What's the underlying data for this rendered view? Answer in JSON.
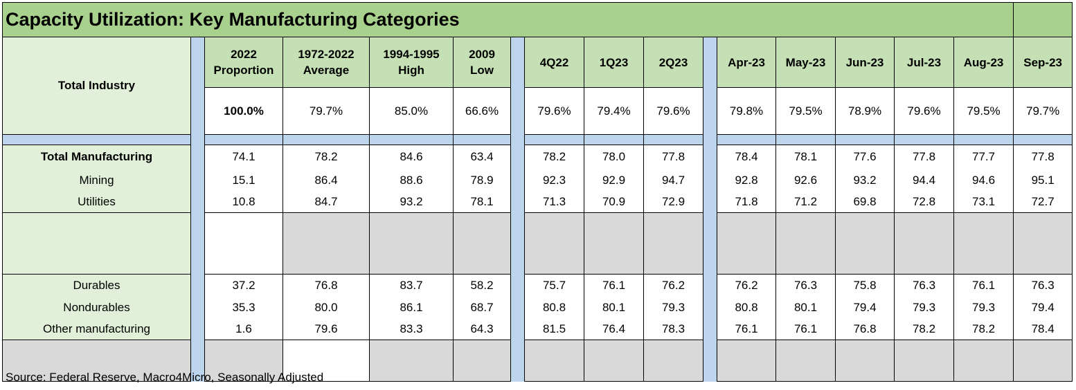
{
  "title": "Capacity Utilization: Key Manufacturing Categories",
  "header": {
    "row_label": "Total Industry",
    "columns": [
      {
        "line1": "2022",
        "line2": "Proportion"
      },
      {
        "line1": "1972-2022",
        "line2": "Average"
      },
      {
        "line1": "1994-1995",
        "line2": "High"
      },
      {
        "line1": "2009",
        "line2": "Low"
      },
      {
        "line1": "4Q22",
        "line2": ""
      },
      {
        "line1": "1Q23",
        "line2": ""
      },
      {
        "line1": "2Q23",
        "line2": ""
      },
      {
        "line1": "Apr-23",
        "line2": ""
      },
      {
        "line1": "May-23",
        "line2": ""
      },
      {
        "line1": "Jun-23",
        "line2": ""
      },
      {
        "line1": "Jul-23",
        "line2": ""
      },
      {
        "line1": "Aug-23",
        "line2": ""
      },
      {
        "line1": "Sep-23",
        "line2": ""
      }
    ],
    "values": [
      "100.0%",
      "79.7%",
      "85.0%",
      "66.6%",
      "79.6%",
      "79.4%",
      "79.6%",
      "79.8%",
      "79.5%",
      "78.9%",
      "79.6%",
      "79.5%",
      "79.7%"
    ]
  },
  "rows_group1": [
    {
      "label": "Total Manufacturing",
      "values": [
        "74.1",
        "78.2",
        "84.6",
        "63.4",
        "78.2",
        "78.0",
        "77.8",
        "78.4",
        "78.1",
        "77.6",
        "77.8",
        "77.7",
        "77.8"
      ]
    },
    {
      "label": "Mining",
      "values": [
        "15.1",
        "86.4",
        "88.6",
        "78.9",
        "92.3",
        "92.9",
        "94.7",
        "92.8",
        "92.6",
        "93.2",
        "94.4",
        "94.6",
        "95.1"
      ]
    },
    {
      "label": "Utilities",
      "values": [
        "10.8",
        "84.7",
        "93.2",
        "78.1",
        "71.3",
        "70.9",
        "72.9",
        "71.8",
        "71.2",
        "69.8",
        "72.8",
        "73.1",
        "72.7"
      ]
    }
  ],
  "rows_group2": [
    {
      "label": "Durables",
      "values": [
        "37.2",
        "76.8",
        "83.7",
        "58.2",
        "75.7",
        "76.1",
        "76.2",
        "76.2",
        "76.3",
        "75.8",
        "76.3",
        "76.1",
        "76.3"
      ]
    },
    {
      "label": "Nondurables",
      "values": [
        "35.3",
        "80.0",
        "86.1",
        "68.7",
        "80.8",
        "80.1",
        "79.3",
        "80.8",
        "80.1",
        "79.4",
        "79.3",
        "79.3",
        "79.4"
      ]
    },
    {
      "label": "Other manufacturing",
      "values": [
        "1.6",
        "79.6",
        "83.3",
        "64.3",
        "81.5",
        "76.4",
        "78.3",
        "76.1",
        "76.1",
        "76.8",
        "78.2",
        "78.2",
        "78.4"
      ]
    }
  ],
  "source": "Source: Federal Reserve, Macro4Micro, Seasonally Adjusted",
  "colors": {
    "title_bg": "#a9d18e",
    "header_bg": "#c5e0b4",
    "label_bg": "#e2f0d9",
    "separator_bg": "#bcd4ec",
    "blank_bg": "#d9d9d9"
  }
}
